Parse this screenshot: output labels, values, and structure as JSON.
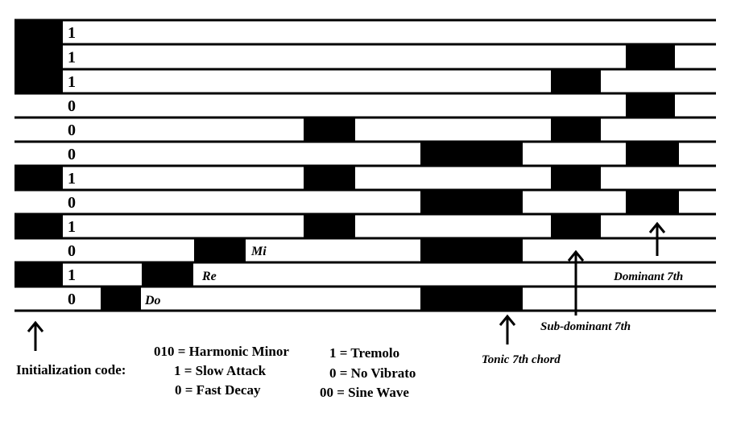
{
  "rows": [
    {
      "bit": "1",
      "label": ""
    },
    {
      "bit": "1",
      "label": ""
    },
    {
      "bit": "1",
      "label": ""
    },
    {
      "bit": "0",
      "label": ""
    },
    {
      "bit": "0",
      "label": ""
    },
    {
      "bit": "0",
      "label": ""
    },
    {
      "bit": "1",
      "label": ""
    },
    {
      "bit": "0",
      "label": ""
    },
    {
      "bit": "1",
      "label": ""
    },
    {
      "bit": "0",
      "label": "Mi"
    },
    {
      "bit": "1",
      "label": "Re"
    },
    {
      "bit": "0",
      "label": "Do"
    }
  ],
  "annotations": {
    "initialization": "Initialization code:",
    "tonic": "Tonic 7th chord",
    "subdominant": "Sub-dominant 7th",
    "dominant": "Dominant 7th"
  },
  "legend": {
    "left": [
      "010 = Harmonic Minor",
      "1 = Slow Attack",
      "0 = Fast Decay"
    ],
    "right": [
      "1 = Tremolo",
      "0 = No Vibrato",
      "00 = Sine Wave"
    ]
  },
  "colors": {
    "ink": "#000000",
    "paper": "#ffffff"
  }
}
